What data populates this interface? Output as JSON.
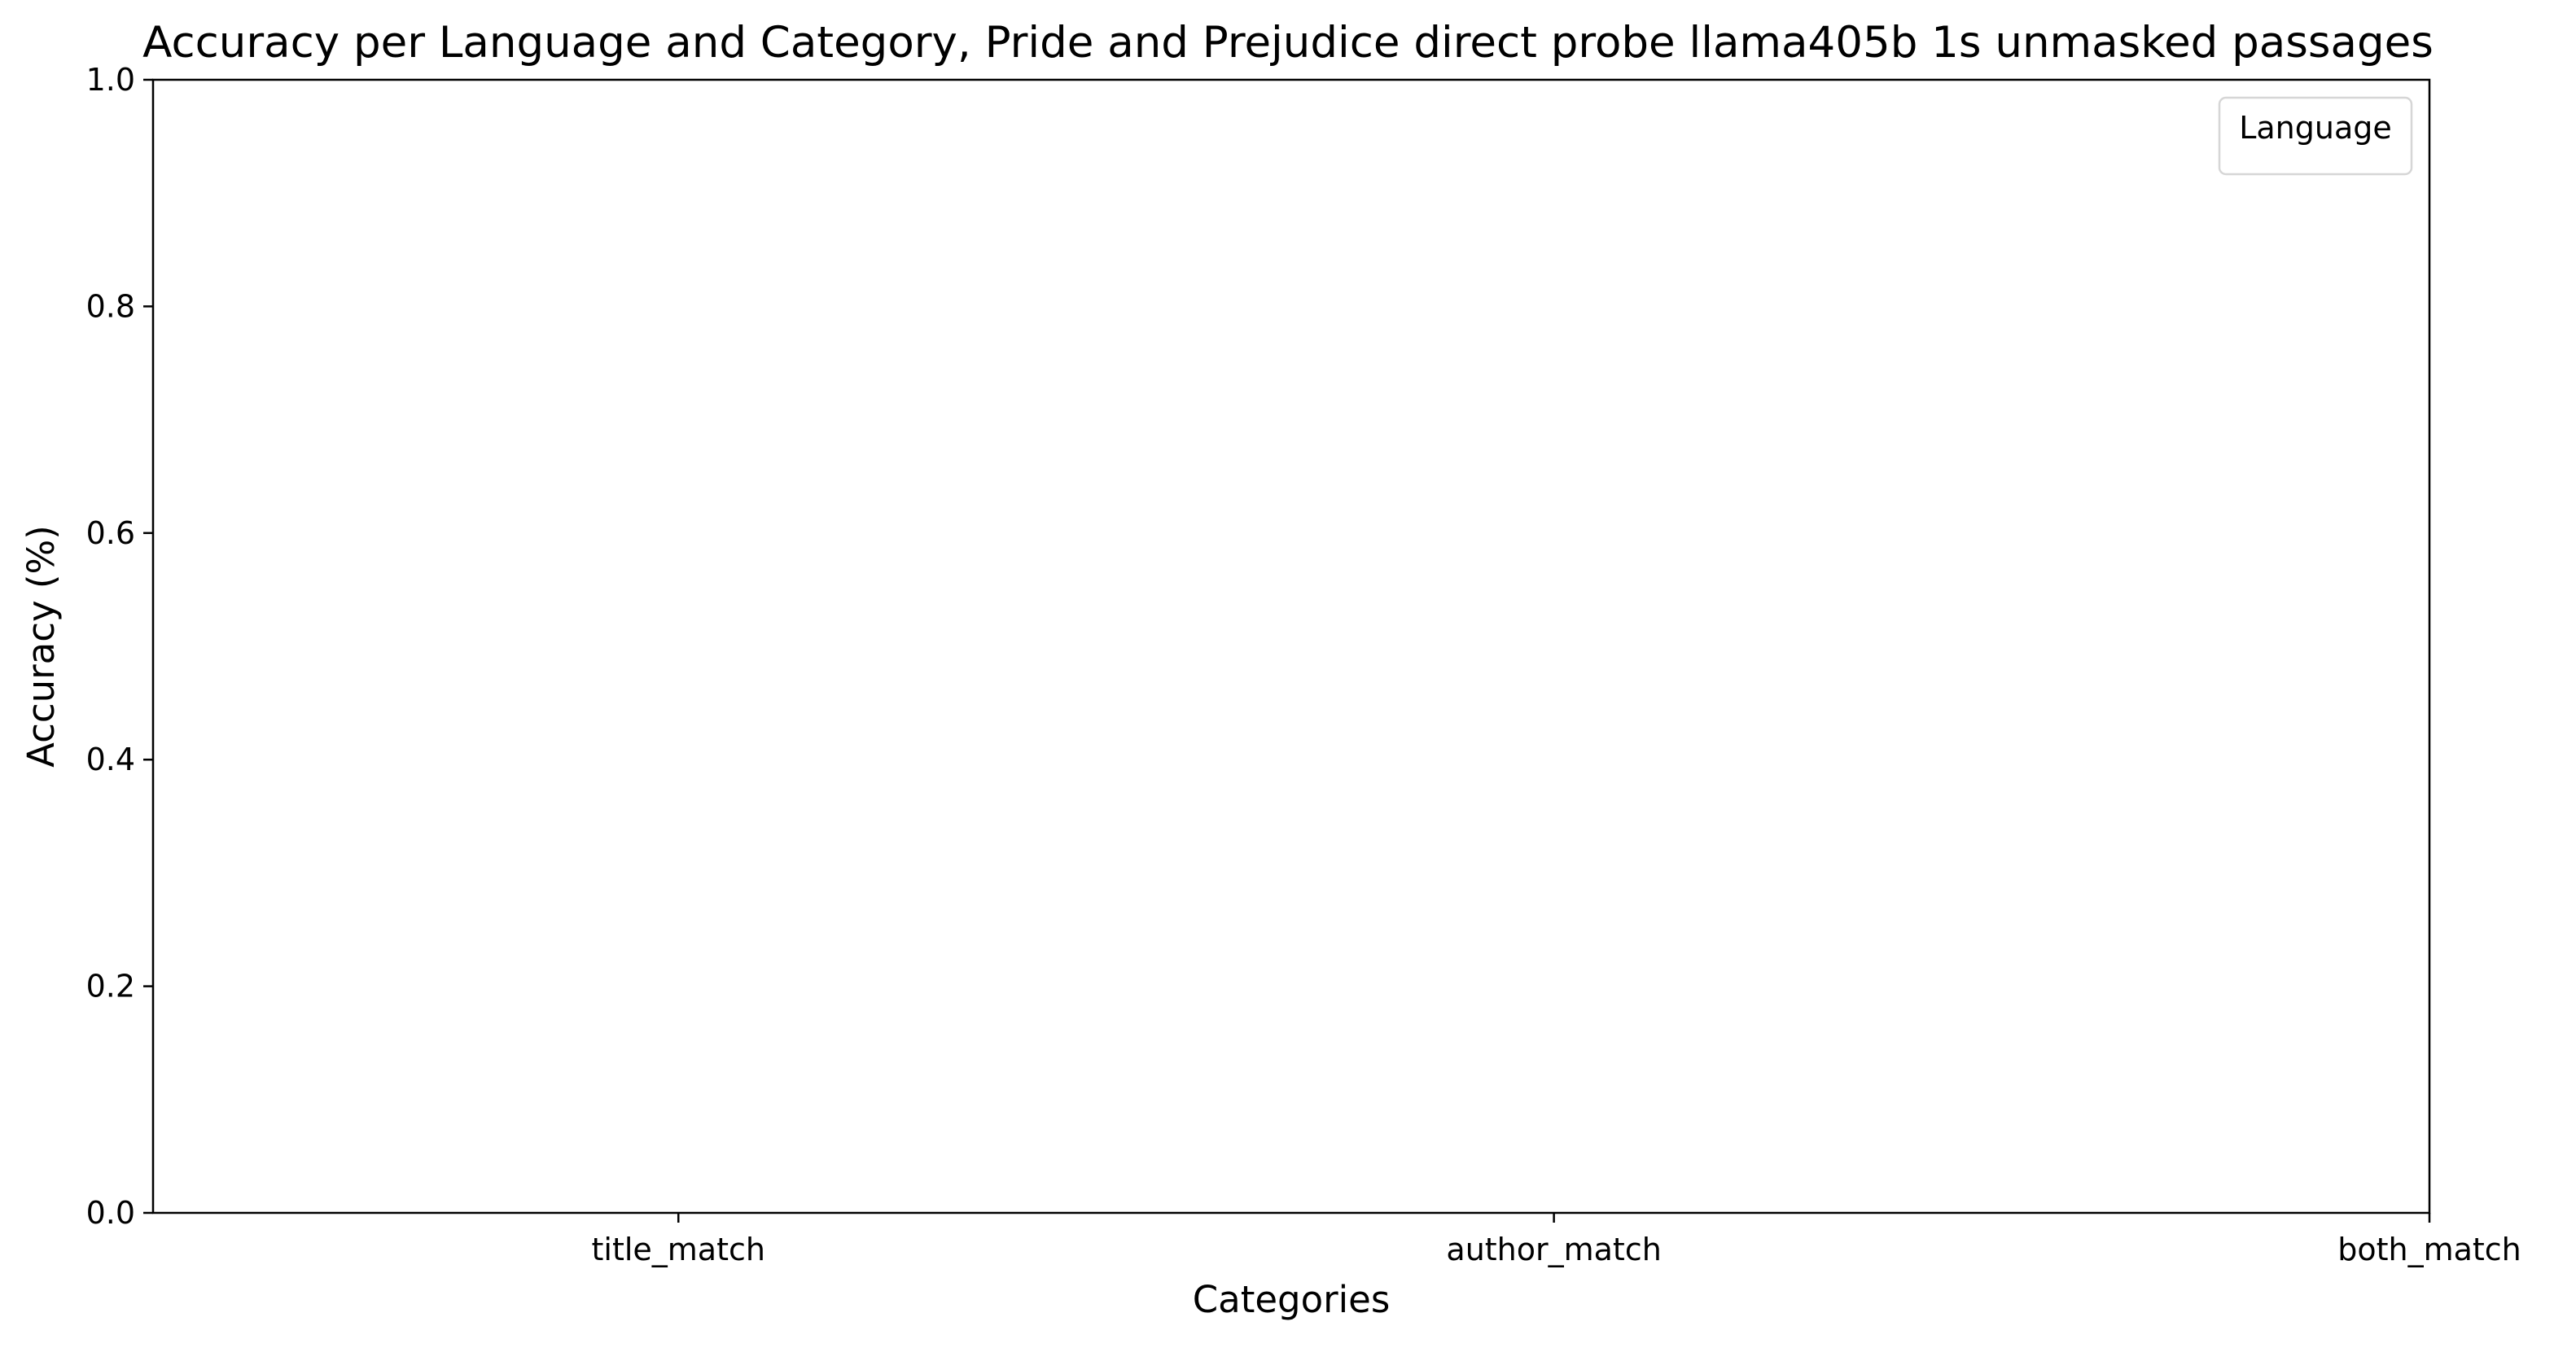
{
  "chart_data": {
    "type": "bar",
    "title": "Accuracy per Language and Category, Pride and Prejudice direct probe llama405b 1s unmasked passages",
    "xlabel": "Categories",
    "ylabel": "Accuracy (%)",
    "categories": [
      "title_match",
      "author_match",
      "both_match"
    ],
    "series": [],
    "ylim": [
      0,
      1.0
    ],
    "yticks": [
      "0.0",
      "0.2",
      "0.4",
      "0.6",
      "0.8",
      "1.0"
    ],
    "grid": false,
    "legend": {
      "title": "Language",
      "placement": "upper right",
      "entries": []
    }
  }
}
